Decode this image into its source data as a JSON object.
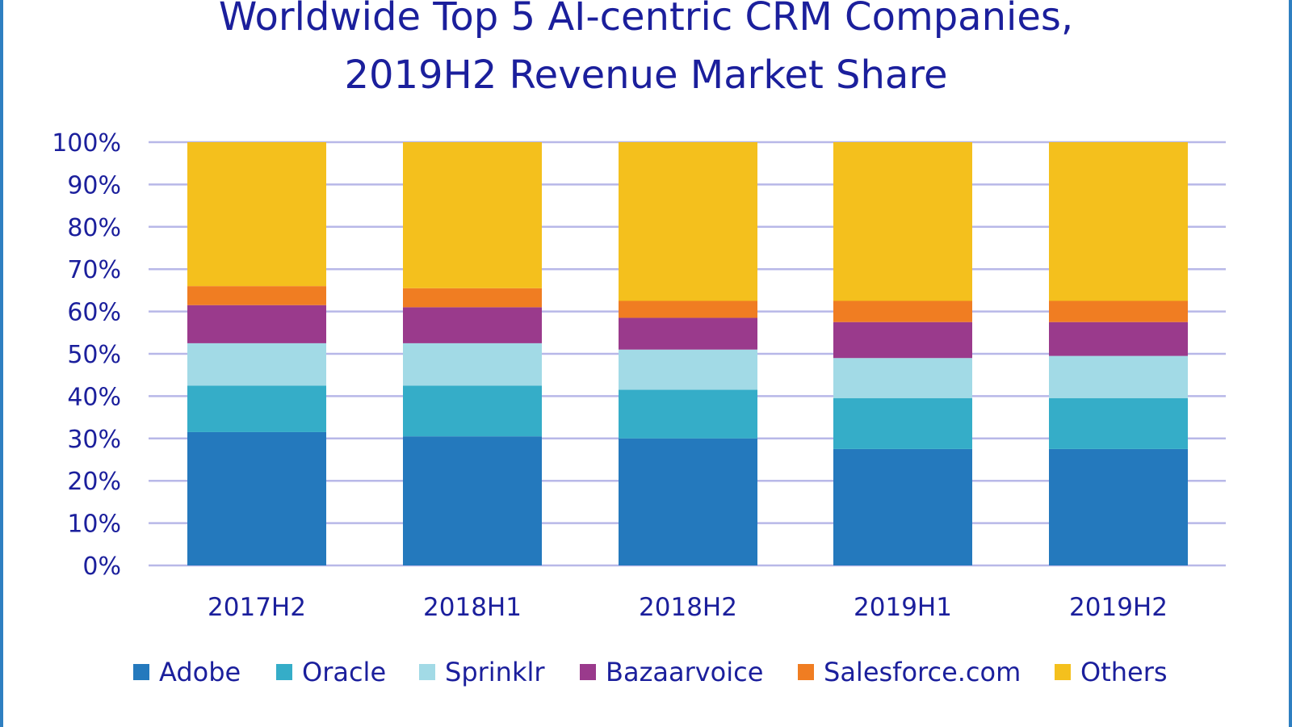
{
  "chart_data": {
    "type": "bar",
    "stacked": true,
    "title": "Worldwide Top 5 AI-centric CRM Companies, 2019H2 Revenue Market Share",
    "title_lines": [
      "Worldwide Top 5 AI-centric CRM Companies,",
      "2019H2 Revenue Market Share"
    ],
    "categories": [
      "2017H2",
      "2018H1",
      "2018H2",
      "2019H1",
      "2019H2"
    ],
    "y_ticks": [
      "0%",
      "10%",
      "20%",
      "30%",
      "40%",
      "50%",
      "60%",
      "70%",
      "80%",
      "90%",
      "100%"
    ],
    "ylim": [
      0,
      100
    ],
    "grid": true,
    "legend_position": "bottom",
    "series": [
      {
        "name": "Adobe",
        "color": "#2479bd",
        "values": [
          31.5,
          30.5,
          30.0,
          27.5,
          27.5
        ]
      },
      {
        "name": "Oracle",
        "color": "#35adc8",
        "values": [
          11.0,
          12.0,
          11.5,
          12.0,
          12.0
        ]
      },
      {
        "name": "Sprinklr",
        "color": "#a2dae6",
        "values": [
          10.0,
          10.0,
          9.5,
          9.5,
          10.0
        ]
      },
      {
        "name": "Bazaarvoice",
        "color": "#9a3a8c",
        "values": [
          9.0,
          8.5,
          7.5,
          8.5,
          8.0
        ]
      },
      {
        "name": "Salesforce.com",
        "color": "#f07d22",
        "values": [
          4.5,
          4.5,
          4.0,
          5.0,
          5.0
        ]
      },
      {
        "name": "Others",
        "color": "#f4c01d",
        "values": [
          34.0,
          34.5,
          37.5,
          37.5,
          37.5
        ]
      }
    ]
  }
}
